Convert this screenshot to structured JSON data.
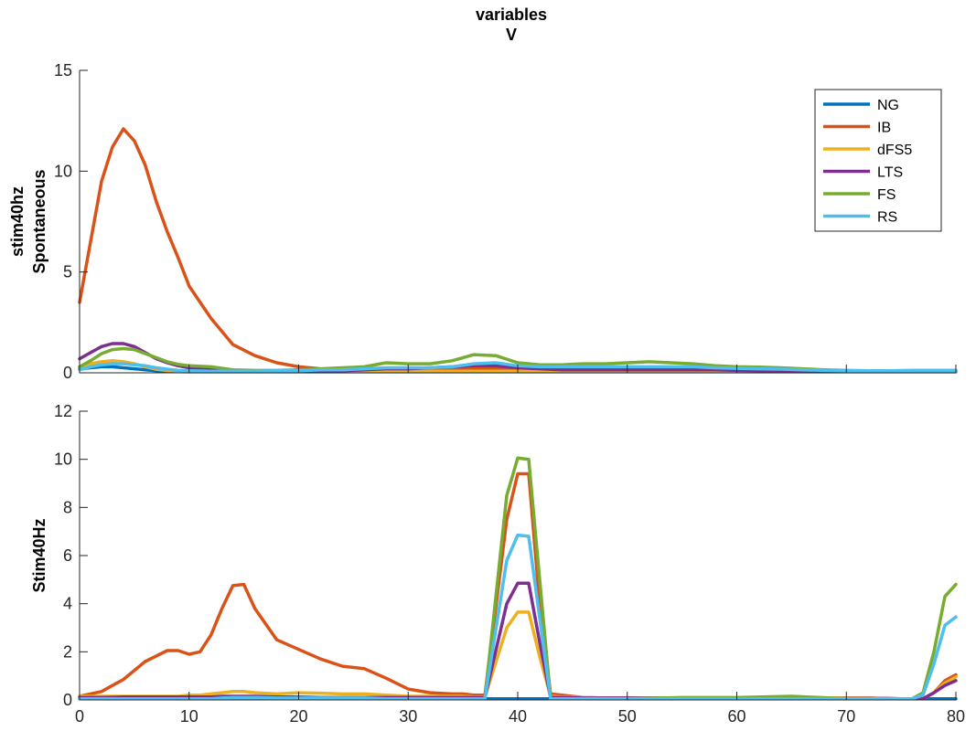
{
  "title": [
    "variables",
    "V"
  ],
  "chart_data": [
    {
      "type": "line",
      "ylabel": [
        "stim40hz",
        "Spontaneous"
      ],
      "xlim": [
        0,
        80
      ],
      "ylim": [
        0,
        15
      ],
      "yticks": [
        0,
        5,
        10,
        15
      ],
      "xticks": [],
      "grid": false,
      "legend": {
        "placement": "top-right"
      },
      "x": [
        0,
        1,
        2,
        3,
        4,
        5,
        6,
        7,
        8,
        9,
        10,
        12,
        14,
        16,
        18,
        20,
        22,
        24,
        26,
        28,
        30,
        32,
        34,
        36,
        38,
        40,
        42,
        44,
        46,
        48,
        50,
        52,
        54,
        56,
        58,
        60,
        62,
        64,
        66,
        68,
        70,
        72,
        74,
        76,
        78,
        80
      ],
      "series": [
        {
          "name": "NG",
          "color": "#0072BD",
          "values": [
            0.2,
            0.25,
            0.3,
            0.3,
            0.25,
            0.2,
            0.15,
            0.1,
            0.08,
            0.06,
            0.05,
            0.05,
            0.05,
            0.05,
            0.05,
            0.05,
            0.05,
            0.05,
            0.05,
            0.05,
            0.05,
            0.05,
            0.05,
            0.05,
            0.05,
            0.05,
            0.05,
            0.05,
            0.05,
            0.05,
            0.05,
            0.05,
            0.05,
            0.05,
            0.05,
            0.05,
            0.05,
            0.05,
            0.05,
            0.05,
            0.05,
            0.05,
            0.05,
            0.05,
            0.05,
            0.05
          ]
        },
        {
          "name": "IB",
          "color": "#D95319",
          "values": [
            3.5,
            6.5,
            9.5,
            11.2,
            12.1,
            11.5,
            10.3,
            8.5,
            7.0,
            5.7,
            4.3,
            2.7,
            1.4,
            0.85,
            0.5,
            0.3,
            0.2,
            0.15,
            0.15,
            0.15,
            0.15,
            0.15,
            0.15,
            0.2,
            0.2,
            0.2,
            0.15,
            0.15,
            0.15,
            0.15,
            0.15,
            0.15,
            0.15,
            0.15,
            0.12,
            0.1,
            0.1,
            0.1,
            0.08,
            0.08,
            0.08,
            0.08,
            0.08,
            0.08,
            0.08,
            0.08
          ]
        },
        {
          "name": "dFS5",
          "color": "#EDB120",
          "values": [
            0.3,
            0.45,
            0.55,
            0.6,
            0.55,
            0.45,
            0.3,
            0.18,
            0.12,
            0.1,
            0.08,
            0.08,
            0.08,
            0.08,
            0.08,
            0.08,
            0.08,
            0.08,
            0.08,
            0.08,
            0.08,
            0.08,
            0.08,
            0.08,
            0.08,
            0.08,
            0.08,
            0.08,
            0.08,
            0.08,
            0.08,
            0.08,
            0.08,
            0.08,
            0.08,
            0.08,
            0.08,
            0.08,
            0.08,
            0.08,
            0.08,
            0.08,
            0.08,
            0.08,
            0.08,
            0.08
          ]
        },
        {
          "name": "LTS",
          "color": "#7E2F8E",
          "values": [
            0.7,
            1.0,
            1.3,
            1.45,
            1.45,
            1.3,
            1.0,
            0.7,
            0.5,
            0.35,
            0.25,
            0.15,
            0.1,
            0.1,
            0.1,
            0.1,
            0.1,
            0.1,
            0.15,
            0.2,
            0.2,
            0.25,
            0.3,
            0.35,
            0.35,
            0.25,
            0.2,
            0.15,
            0.15,
            0.15,
            0.15,
            0.15,
            0.15,
            0.15,
            0.15,
            0.12,
            0.1,
            0.1,
            0.1,
            0.1,
            0.1,
            0.1,
            0.1,
            0.1,
            0.1,
            0.1
          ]
        },
        {
          "name": "FS",
          "color": "#77AC30",
          "values": [
            0.3,
            0.6,
            0.95,
            1.15,
            1.2,
            1.15,
            0.95,
            0.75,
            0.55,
            0.42,
            0.35,
            0.3,
            0.15,
            0.12,
            0.12,
            0.15,
            0.2,
            0.25,
            0.3,
            0.5,
            0.45,
            0.45,
            0.6,
            0.9,
            0.85,
            0.5,
            0.4,
            0.4,
            0.45,
            0.45,
            0.5,
            0.55,
            0.5,
            0.45,
            0.35,
            0.3,
            0.28,
            0.25,
            0.2,
            0.15,
            0.12,
            0.1,
            0.1,
            0.12,
            0.12,
            0.12
          ]
        },
        {
          "name": "RS",
          "color": "#4DBEEE",
          "values": [
            0.15,
            0.3,
            0.4,
            0.45,
            0.45,
            0.4,
            0.35,
            0.25,
            0.18,
            0.12,
            0.1,
            0.08,
            0.08,
            0.08,
            0.1,
            0.1,
            0.15,
            0.15,
            0.2,
            0.25,
            0.25,
            0.25,
            0.3,
            0.45,
            0.5,
            0.35,
            0.3,
            0.3,
            0.3,
            0.3,
            0.3,
            0.3,
            0.3,
            0.3,
            0.25,
            0.22,
            0.2,
            0.18,
            0.15,
            0.12,
            0.1,
            0.1,
            0.1,
            0.1,
            0.1,
            0.1
          ]
        }
      ]
    },
    {
      "type": "line",
      "ylabel": [
        "Stim40Hz"
      ],
      "xlim": [
        0,
        80
      ],
      "ylim": [
        0,
        12
      ],
      "yticks": [
        0,
        2,
        4,
        6,
        8,
        10,
        12
      ],
      "xticks": [
        0,
        10,
        20,
        30,
        40,
        50,
        60,
        70,
        80
      ],
      "grid": false,
      "x": [
        0,
        2,
        4,
        6,
        8,
        9,
        10,
        11,
        12,
        13,
        14,
        15,
        16,
        18,
        20,
        22,
        24,
        26,
        28,
        30,
        32,
        34,
        35,
        36,
        37,
        39,
        40,
        41,
        42,
        43,
        44,
        46,
        48,
        50,
        55,
        60,
        65,
        70,
        72,
        74,
        75,
        76,
        77,
        78,
        79,
        80
      ],
      "series": [
        {
          "name": "NG",
          "color": "#0072BD",
          "values": [
            0.05,
            0.05,
            0.05,
            0.05,
            0.05,
            0.05,
            0.05,
            0.05,
            0.05,
            0.05,
            0.05,
            0.05,
            0.05,
            0.05,
            0.05,
            0.05,
            0.05,
            0.05,
            0.05,
            0.05,
            0.05,
            0.05,
            0.05,
            0.05,
            0.05,
            0.05,
            0.05,
            0.05,
            0.05,
            0.05,
            0.05,
            0.05,
            0.05,
            0.05,
            0.05,
            0.05,
            0.05,
            0.05,
            0.05,
            0.05,
            0.05,
            0.05,
            0.05,
            0.05,
            0.05,
            0.05
          ]
        },
        {
          "name": "IB",
          "color": "#D95319",
          "values": [
            0.15,
            0.35,
            0.85,
            1.6,
            2.05,
            2.05,
            1.9,
            2.0,
            2.7,
            3.8,
            4.75,
            4.8,
            3.8,
            2.5,
            2.1,
            1.7,
            1.4,
            1.3,
            0.9,
            0.45,
            0.3,
            0.25,
            0.25,
            0.2,
            0.2,
            7.5,
            9.4,
            9.4,
            4.0,
            0.25,
            0.2,
            0.1,
            0.08,
            0.08,
            0.08,
            0.08,
            0.08,
            0.08,
            0.08,
            0.05,
            0.05,
            0.05,
            0.05,
            0.3,
            0.8,
            1.05
          ]
        },
        {
          "name": "dFS5",
          "color": "#EDB120",
          "values": [
            0.15,
            0.15,
            0.15,
            0.15,
            0.15,
            0.15,
            0.2,
            0.2,
            0.25,
            0.3,
            0.35,
            0.35,
            0.3,
            0.25,
            0.3,
            0.28,
            0.25,
            0.25,
            0.2,
            0.15,
            0.15,
            0.15,
            0.15,
            0.12,
            0.12,
            3.0,
            3.65,
            3.65,
            1.8,
            0.15,
            0.12,
            0.1,
            0.08,
            0.08,
            0.08,
            0.08,
            0.08,
            0.08,
            0.08,
            0.05,
            0.05,
            0.05,
            0.05,
            0.3,
            0.7,
            0.95
          ]
        },
        {
          "name": "LTS",
          "color": "#7E2F8E",
          "values": [
            0.1,
            0.1,
            0.12,
            0.12,
            0.12,
            0.12,
            0.12,
            0.12,
            0.12,
            0.15,
            0.15,
            0.15,
            0.15,
            0.12,
            0.12,
            0.1,
            0.1,
            0.1,
            0.1,
            0.1,
            0.1,
            0.1,
            0.1,
            0.1,
            0.1,
            4.0,
            4.85,
            4.85,
            2.4,
            0.1,
            0.1,
            0.08,
            0.08,
            0.08,
            0.08,
            0.06,
            0.06,
            0.06,
            0.06,
            0.06,
            0.05,
            0.05,
            0.05,
            0.3,
            0.6,
            0.8
          ]
        },
        {
          "name": "FS",
          "color": "#77AC30",
          "values": [
            0.05,
            0.05,
            0.05,
            0.05,
            0.05,
            0.05,
            0.05,
            0.05,
            0.05,
            0.05,
            0.05,
            0.05,
            0.05,
            0.05,
            0.05,
            0.05,
            0.05,
            0.05,
            0.05,
            0.05,
            0.05,
            0.05,
            0.05,
            0.05,
            0.05,
            8.5,
            10.05,
            10.0,
            5.0,
            0.05,
            0.05,
            0.05,
            0.05,
            0.05,
            0.1,
            0.1,
            0.15,
            0.05,
            0.05,
            0.05,
            0.05,
            0.05,
            0.3,
            2.0,
            4.3,
            4.8
          ]
        },
        {
          "name": "RS",
          "color": "#4DBEEE",
          "values": [
            0.05,
            0.05,
            0.05,
            0.05,
            0.05,
            0.05,
            0.05,
            0.05,
            0.05,
            0.08,
            0.1,
            0.1,
            0.1,
            0.08,
            0.08,
            0.08,
            0.08,
            0.08,
            0.05,
            0.05,
            0.05,
            0.05,
            0.05,
            0.05,
            0.05,
            5.8,
            6.85,
            6.8,
            3.4,
            0.05,
            0.05,
            0.05,
            0.05,
            0.05,
            0.05,
            0.05,
            0.05,
            0.05,
            0.05,
            0.05,
            0.05,
            0.05,
            0.2,
            1.5,
            3.1,
            3.45
          ]
        }
      ]
    }
  ]
}
